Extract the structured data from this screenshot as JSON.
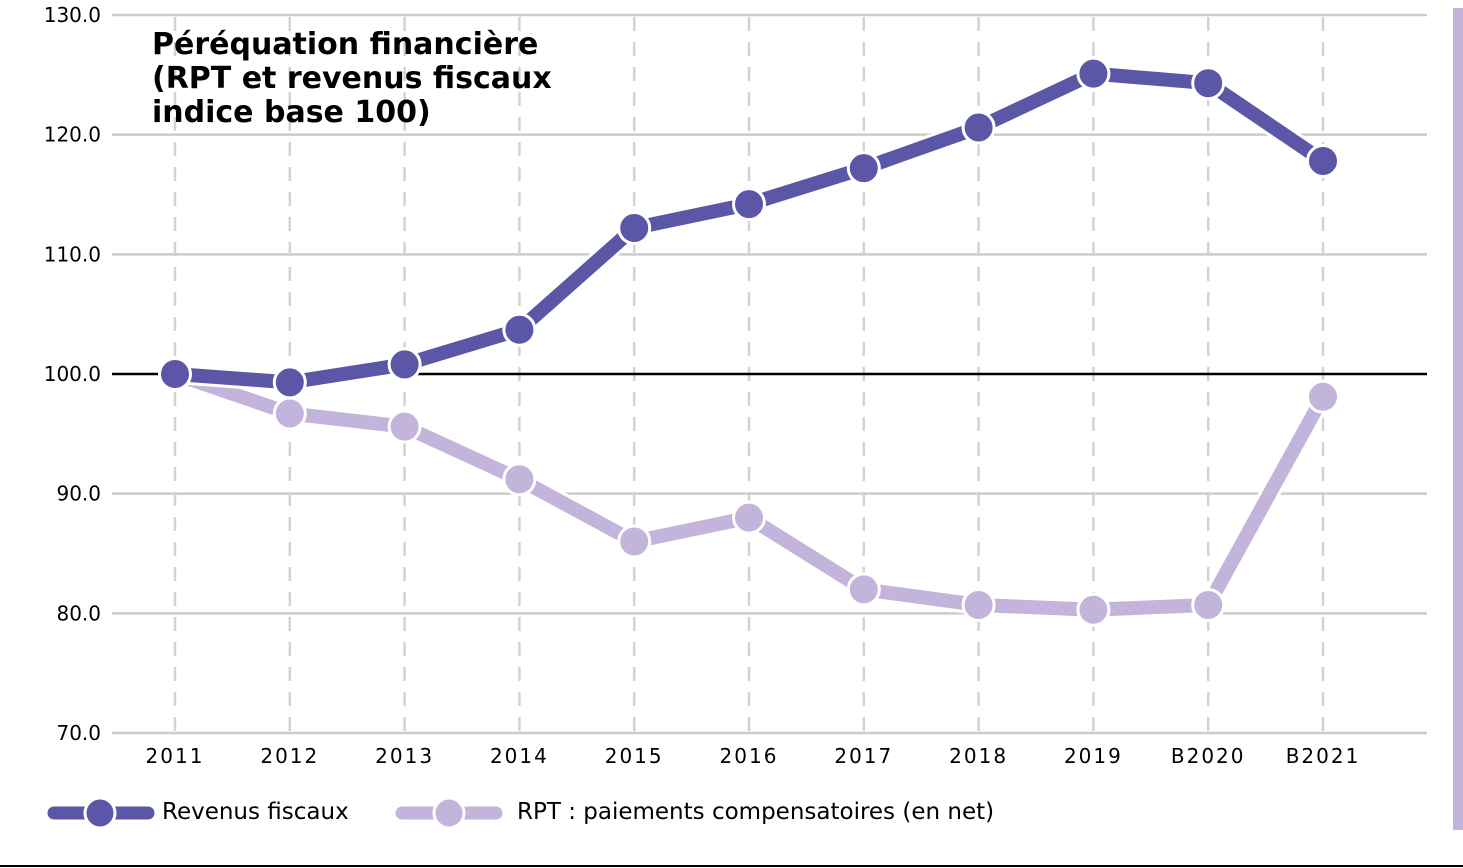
{
  "chart_data": {
    "type": "line",
    "title": "Péréquation financière (RPT et revenus fiscaux indice base 100)",
    "title_lines": [
      "Péréquation financière",
      "(RPT et revenus fiscaux",
      "indice base 100)"
    ],
    "categories": [
      "2011",
      "2012",
      "2013",
      "2014",
      "2015",
      "2016",
      "2017",
      "2018",
      "2019",
      "B2020",
      "B2021"
    ],
    "series": [
      {
        "name": "Revenus fiscaux",
        "color": "#5b56a6",
        "values": [
          100.0,
          99.3,
          100.8,
          103.7,
          112.2,
          114.2,
          117.2,
          120.6,
          125.1,
          124.3,
          117.8
        ]
      },
      {
        "name": "RPT : paiements compensatoires (en net)",
        "color": "#c3b4db",
        "values": [
          100.0,
          96.7,
          95.6,
          91.2,
          86.0,
          88.0,
          82.0,
          80.7,
          80.3,
          80.7,
          98.1
        ]
      }
    ],
    "ylim": [
      70,
      130
    ],
    "yticks": [
      "130.0",
      "120.0",
      "110.0",
      "100.0",
      "90.0",
      "80.0",
      "70.0"
    ],
    "reference_line": 100,
    "grid": true,
    "xlabel": "",
    "ylabel": "",
    "legend_position": "bottom"
  },
  "colors": {
    "grid": "#cccccc",
    "vertical_grid": "#d3d3d3",
    "reference_line": "#000000",
    "side_bar": "#c3b4db",
    "bottom_rule": "#000000"
  }
}
